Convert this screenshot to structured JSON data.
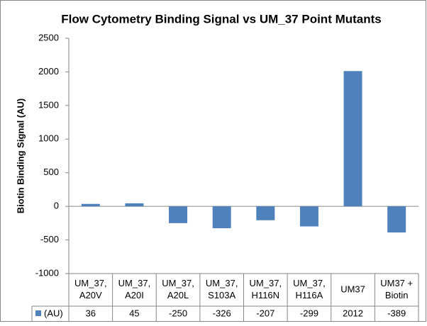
{
  "chart_data": {
    "type": "bar",
    "title": "Flow Cytometry Binding Signal vs UM_37 Point Mutants",
    "y_label": "Biotin Binding Signal (AU)",
    "categories": [
      [
        "UM_37,",
        "A20V"
      ],
      [
        "UM_37,",
        "A20I"
      ],
      [
        "UM_37,",
        "A20L"
      ],
      [
        "UM_37,",
        "S103A"
      ],
      [
        "UM_37,",
        "H116N"
      ],
      [
        "UM_37,",
        "H116A"
      ],
      [
        "UM37"
      ],
      [
        "UM37 +",
        "Biotin"
      ]
    ],
    "series": [
      {
        "name": "(AU)",
        "color": "#4f81bd",
        "values": [
          36,
          45,
          -250,
          -326,
          -207,
          -299,
          2012,
          -389
        ]
      }
    ],
    "ylim": [
      -1000,
      2500
    ],
    "yticks": [
      -1000,
      -500,
      0,
      500,
      1000,
      1500,
      2000,
      2500
    ],
    "data_table": true
  }
}
